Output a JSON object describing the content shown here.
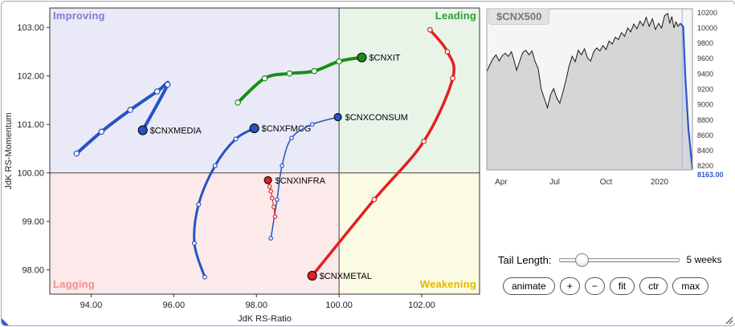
{
  "controls": {
    "tail_length_label": "Tail Length:",
    "tail_length_value": "5 weeks",
    "slider_pos": 0.18,
    "buttons": [
      "animate",
      "+",
      "−",
      "fit",
      "ctr",
      "max"
    ]
  },
  "chart_data": [
    {
      "type": "scatter",
      "title": "Relative Rotation Graph",
      "xlabel": "JdK RS-Ratio",
      "ylabel": "JdK RS-Momentum",
      "xlim": [
        93.0,
        103.4
      ],
      "ylim": [
        97.5,
        103.4
      ],
      "x_ticks": [
        94,
        96,
        98,
        100,
        102
      ],
      "y_ticks": [
        98,
        99,
        100,
        101,
        102,
        103
      ],
      "center": [
        100,
        100
      ],
      "grid": false,
      "quadrants": {
        "improving": {
          "label": "Improving",
          "text_color": "#7d7dd8",
          "bg": "#e9e9f7"
        },
        "leading": {
          "label": "Leading",
          "text_color": "#2e9e2e",
          "bg": "#e9f4e9"
        },
        "lagging": {
          "label": "Lagging",
          "text_color": "#f28f8f",
          "bg": "#fce9e9"
        },
        "weakening": {
          "label": "Weakening",
          "text_color": "#e3b800",
          "bg": "#fbfae2"
        }
      },
      "series": [
        {
          "name": "$CNXMEDIA",
          "color": "#2553c4",
          "width": 4,
          "points": [
            [
              93.65,
              100.4
            ],
            [
              94.25,
              100.85
            ],
            [
              94.95,
              101.3
            ],
            [
              95.6,
              101.68
            ],
            [
              95.85,
              101.82
            ],
            [
              95.25,
              100.88
            ]
          ]
        },
        {
          "name": "$CNXFMCG",
          "color": "#2553c4",
          "width": 3,
          "points": [
            [
              96.75,
              97.85
            ],
            [
              96.5,
              98.55
            ],
            [
              96.6,
              99.35
            ],
            [
              97.0,
              100.15
            ],
            [
              97.5,
              100.7
            ],
            [
              97.95,
              100.92
            ]
          ]
        },
        {
          "name": "$CNXCONSUM",
          "color": "#2553c4",
          "width": 1.5,
          "points": [
            [
              98.35,
              98.65
            ],
            [
              98.5,
              99.45
            ],
            [
              98.62,
              100.15
            ],
            [
              98.85,
              100.72
            ],
            [
              99.35,
              101.0
            ],
            [
              99.97,
              101.15
            ]
          ]
        },
        {
          "name": "$CNXIT",
          "color": "#159015",
          "width": 4,
          "points": [
            [
              97.55,
              101.45
            ],
            [
              98.2,
              101.95
            ],
            [
              98.8,
              102.05
            ],
            [
              99.4,
              102.1
            ],
            [
              100.0,
              102.3
            ],
            [
              100.55,
              102.38
            ]
          ]
        },
        {
          "name": "$CNXINFRA",
          "color": "#e41f1f",
          "width": 1,
          "points": [
            [
              98.45,
              99.1
            ],
            [
              98.42,
              99.3
            ],
            [
              98.38,
              99.48
            ],
            [
              98.35,
              99.62
            ],
            [
              98.32,
              99.72
            ],
            [
              98.28,
              99.85
            ]
          ]
        },
        {
          "name": "$CNXMETAL",
          "color": "#e41f1f",
          "width": 3.5,
          "points": [
            [
              102.2,
              102.95
            ],
            [
              102.62,
              102.5
            ],
            [
              102.75,
              101.95
            ],
            [
              102.05,
              100.65
            ],
            [
              100.85,
              99.45
            ],
            [
              99.35,
              97.88
            ]
          ]
        }
      ]
    },
    {
      "type": "area",
      "title": "$CNX500",
      "ylim": [
        8150,
        10250
      ],
      "y_ticks": [
        10200,
        10000,
        9800,
        9600,
        9400,
        9200,
        9000,
        8800,
        8600,
        8400,
        8200
      ],
      "x_ticks": [
        {
          "label": "Apr",
          "x": 7
        },
        {
          "label": "Jul",
          "x": 33
        },
        {
          "label": "Oct",
          "x": 58
        },
        {
          "label": "2020",
          "x": 84
        }
      ],
      "last_price": "8163.00",
      "line_color": "#1a1a1a",
      "fill_color": "#d6d6d6",
      "bg_color": "#f5f5f5",
      "highlight_color": "#2957d0",
      "marker_color": "#9db4e8",
      "points": [
        [
          0,
          9430
        ],
        [
          1.5,
          9520
        ],
        [
          3,
          9600
        ],
        [
          4.5,
          9650
        ],
        [
          6,
          9570
        ],
        [
          7.5,
          9640
        ],
        [
          9,
          9670
        ],
        [
          10.5,
          9630
        ],
        [
          12,
          9690
        ],
        [
          13,
          9600
        ],
        [
          14.5,
          9450
        ],
        [
          16,
          9570
        ],
        [
          17.5,
          9680
        ],
        [
          19,
          9710
        ],
        [
          20.5,
          9650
        ],
        [
          22,
          9700
        ],
        [
          23.5,
          9560
        ],
        [
          25,
          9470
        ],
        [
          26.5,
          9200
        ],
        [
          28,
          9080
        ],
        [
          29.5,
          8960
        ],
        [
          31,
          9130
        ],
        [
          32.5,
          9210
        ],
        [
          34,
          9090
        ],
        [
          35.5,
          9020
        ],
        [
          37,
          9160
        ],
        [
          38.5,
          9320
        ],
        [
          40,
          9500
        ],
        [
          41.5,
          9630
        ],
        [
          43,
          9560
        ],
        [
          44.5,
          9710
        ],
        [
          46,
          9650
        ],
        [
          47.5,
          9730
        ],
        [
          49,
          9610
        ],
        [
          50.5,
          9570
        ],
        [
          52,
          9690
        ],
        [
          53.5,
          9740
        ],
        [
          55,
          9700
        ],
        [
          56.5,
          9770
        ],
        [
          58,
          9720
        ],
        [
          59.5,
          9830
        ],
        [
          61,
          9790
        ],
        [
          62.5,
          9880
        ],
        [
          64,
          9850
        ],
        [
          65.5,
          9940
        ],
        [
          67,
          9890
        ],
        [
          68.5,
          10000
        ],
        [
          70,
          9950
        ],
        [
          71.5,
          10050
        ],
        [
          73,
          9990
        ],
        [
          74.5,
          10090
        ],
        [
          76,
          10030
        ],
        [
          77.5,
          10140
        ],
        [
          79,
          10020
        ],
        [
          80.5,
          10120
        ],
        [
          82,
          9980
        ],
        [
          83.5,
          10060
        ],
        [
          85,
          10000
        ],
        [
          86.5,
          10160
        ],
        [
          88,
          10190
        ],
        [
          89,
          10060
        ],
        [
          90,
          10150
        ],
        [
          91,
          10000
        ],
        [
          92,
          10080
        ],
        [
          93,
          10020
        ],
        [
          94,
          10060
        ]
      ],
      "highlight_points": [
        [
          94,
          10060
        ],
        [
          95.5,
          10020
        ],
        [
          96.5,
          9400
        ],
        [
          98,
          8700
        ],
        [
          100,
          8163
        ]
      ],
      "markers_x": [
        95,
        100
      ]
    }
  ]
}
